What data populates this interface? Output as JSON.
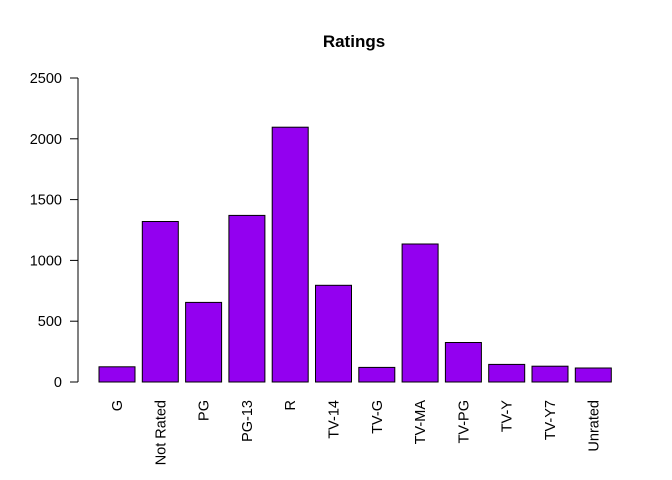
{
  "chart_data": {
    "type": "bar",
    "title": "Ratings",
    "xlabel": "",
    "ylabel": "",
    "categories": [
      "G",
      "Not Rated",
      "PG",
      "PG-13",
      "R",
      "TV-14",
      "TV-G",
      "TV-MA",
      "TV-PG",
      "TV-Y",
      "TV-Y7",
      "Unrated"
    ],
    "values": [
      125,
      1320,
      655,
      1370,
      2095,
      795,
      120,
      1135,
      325,
      145,
      130,
      115
    ],
    "ylim": [
      0,
      2500
    ],
    "yticks": [
      0,
      500,
      1000,
      1500,
      2000,
      2500
    ],
    "bar_color": "#9300F0",
    "grid": false
  }
}
